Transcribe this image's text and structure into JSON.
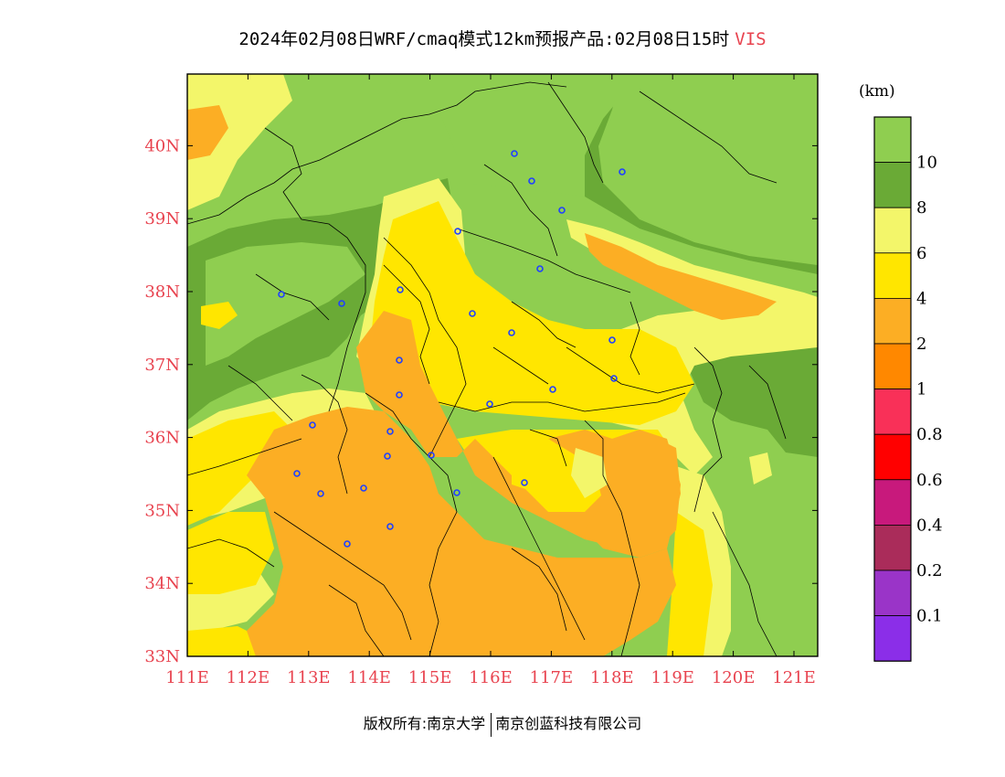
{
  "header": {
    "title": "2024年02月08日WRF/cmaq模式12km预报产品:02月08日15时",
    "variable": "VIS"
  },
  "footer": {
    "left": "版权所有:南京大学",
    "right": "南京创蓝科技有限公司"
  },
  "map": {
    "lon_labels": [
      "111E",
      "112E",
      "113E",
      "114E",
      "115E",
      "116E",
      "117E",
      "118E",
      "119E",
      "120E",
      "121E"
    ],
    "lat_labels": [
      "33N",
      "34N",
      "35N",
      "36N",
      "37N",
      "38N",
      "39N",
      "40N"
    ],
    "label_color": "#e8434f"
  },
  "legend": {
    "unit": "(km)",
    "levels": [
      {
        "label": "10",
        "color": "#8fce50"
      },
      {
        "label": "8",
        "color": "#6aaa36"
      },
      {
        "label": "6",
        "color": "#f3f66a"
      },
      {
        "label": "4",
        "color": "#ffe600"
      },
      {
        "label": "2",
        "color": "#fcae24"
      },
      {
        "label": "1",
        "color": "#ff8800"
      },
      {
        "label": "0.8",
        "color": "#f93058"
      },
      {
        "label": "0.6",
        "color": "#ff0000"
      },
      {
        "label": "0.4",
        "color": "#c8197c"
      },
      {
        "label": "0.2",
        "color": "#aa2c5a"
      },
      {
        "label": "0.1",
        "color": "#9a34c8"
      },
      {
        "label": "",
        "color": "#8b2ee8"
      }
    ]
  }
}
